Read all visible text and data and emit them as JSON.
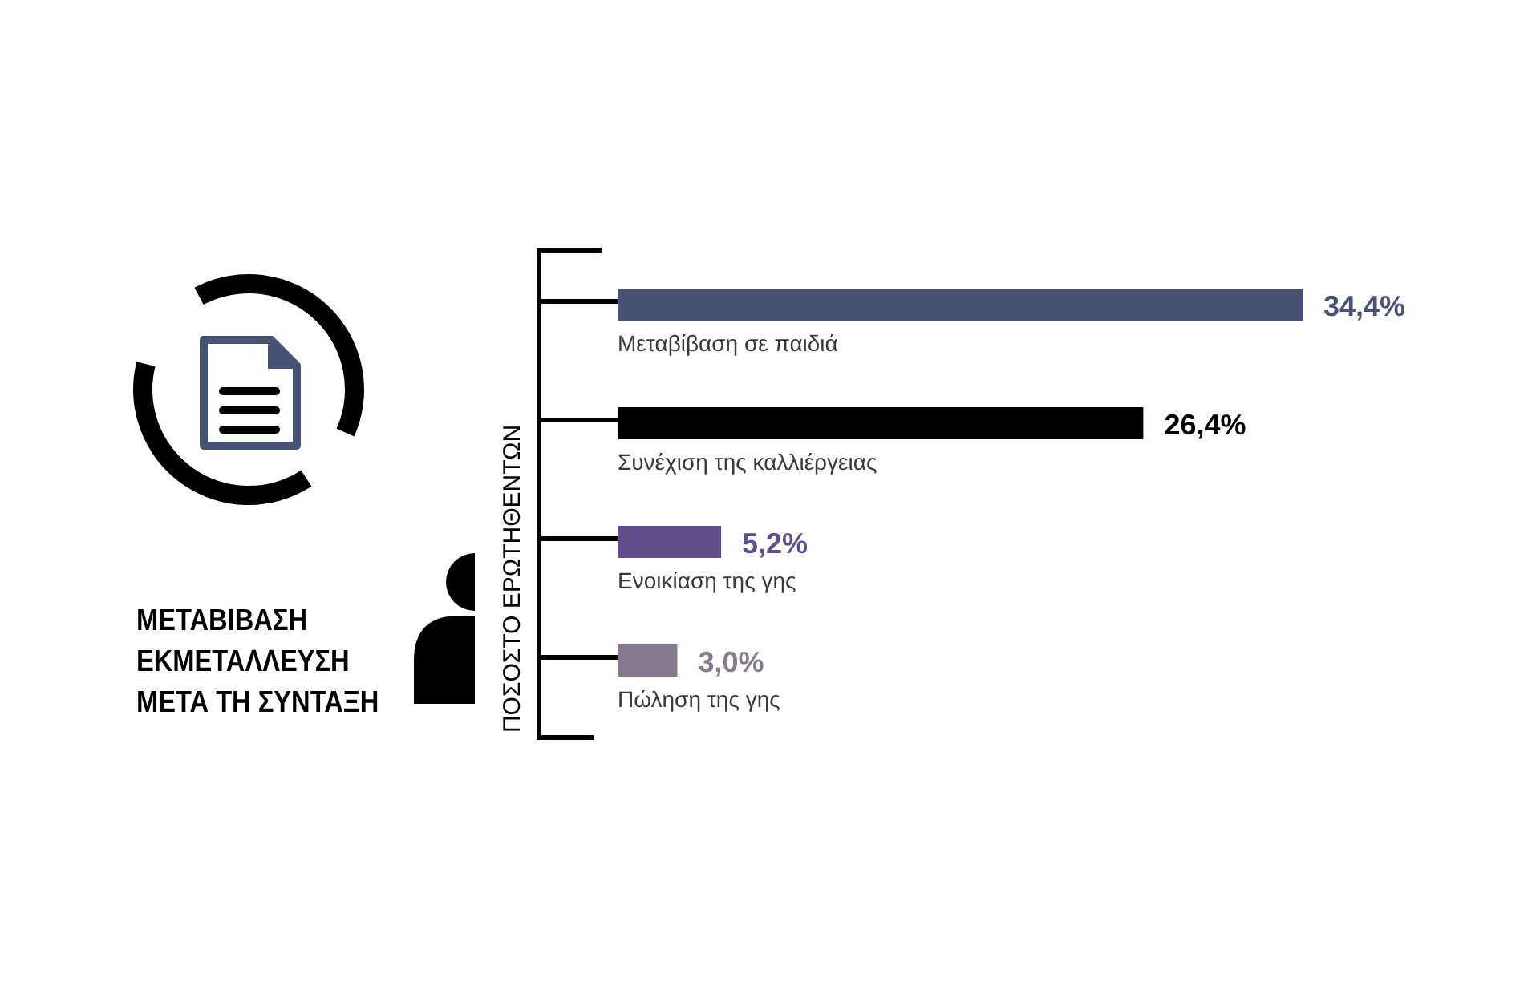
{
  "chart_data": {
    "type": "bar",
    "orientation": "horizontal",
    "title": "ΜΕΤΑΒΙΒΑΣΗ\nΕΚΜΕΤΑΛΛΕΥΣΗ\nΜΕΤΑ ΤΗ ΣΥΝΤΑΞΗ",
    "ylabel": "ΠΟΣΟΣΤΟ ΕΡΩΤΗΘΕΝΤΩΝ",
    "categories": [
      "Μεταβίβαση σε παιδιά",
      "Συνέχιση της καλλιέργειας",
      "Ενοικίαση της γης",
      "Πώληση της γης"
    ],
    "values": [
      34.4,
      26.4,
      5.2,
      3.0
    ],
    "colors": [
      "#485274",
      "#000000",
      "#5f4f8a",
      "#857a8e"
    ],
    "value_labels": [
      "34,4%",
      "26,4%",
      "5,2%",
      "3,0%"
    ],
    "tick_labels": "y"
  }
}
